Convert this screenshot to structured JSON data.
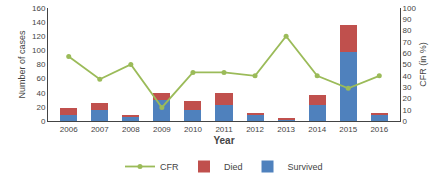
{
  "chart_data": {
    "type": "bar",
    "stacked": true,
    "categories": [
      "2006",
      "2007",
      "2008",
      "2009",
      "2010",
      "2011",
      "2012",
      "2013",
      "2014",
      "2015",
      "2016"
    ],
    "series": [
      {
        "name": "Survived",
        "color": "#4F81BD",
        "values": [
          8,
          15,
          5,
          30,
          15,
          22,
          8,
          2,
          22,
          97,
          8
        ]
      },
      {
        "name": "Died",
        "color": "#C0504D",
        "values": [
          10,
          11,
          3,
          10,
          13,
          18,
          4,
          2,
          15,
          39,
          3
        ]
      },
      {
        "name": "CFR",
        "type": "line",
        "marker": "circle",
        "axis": "y2",
        "color": "#9BBB59",
        "values": [
          57,
          37,
          50,
          12,
          43,
          43,
          40,
          75,
          40,
          29,
          40
        ]
      }
    ],
    "xlabel": "Year",
    "ylabel": "Number of cases",
    "y2label": "CFR (in %)",
    "ylim": [
      0,
      160
    ],
    "yticks": [
      0,
      20,
      40,
      60,
      80,
      100,
      120,
      140,
      160
    ],
    "y2lim": [
      0,
      100
    ],
    "y2ticks": [
      0,
      10,
      20,
      30,
      40,
      50,
      60,
      70,
      80,
      90,
      100
    ],
    "grid": false,
    "legend": "bottom"
  }
}
